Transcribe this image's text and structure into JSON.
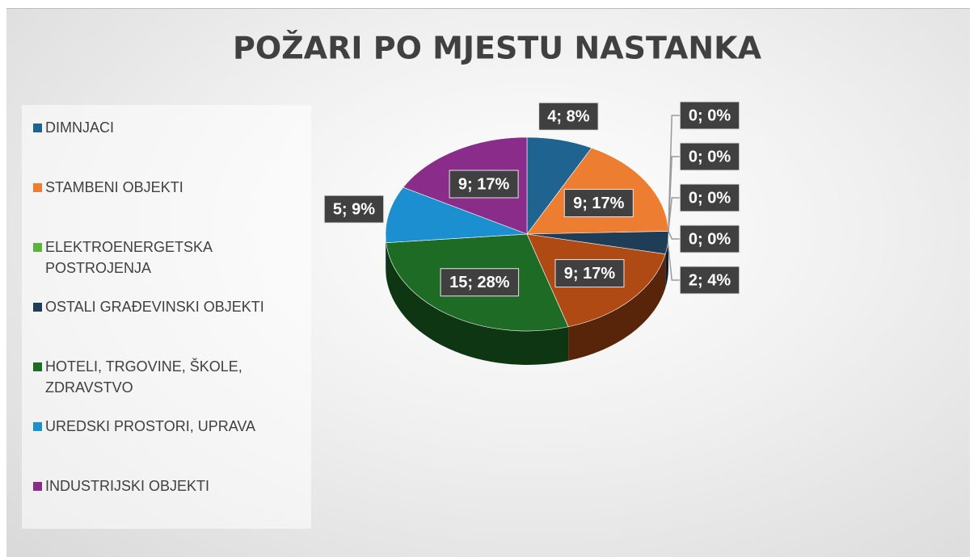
{
  "chart_data": {
    "type": "pie",
    "title": "POŽARI PO MJESTU NASTANKA",
    "categories": [
      "DIMNJACI",
      "STAMBENI OBJEKTI",
      null,
      null,
      null,
      "ELEKTROENERGETSKA POSTROJENJA",
      "OSTALI GRAĐEVINSKI OBJEKTI",
      null,
      "HOTELI, TRGOVINE, ŠKOLE, ZDRAVSTVO",
      "UREDSKI PROSTORI, UPRAVA",
      "INDUSTRIJSKI OBJEKTI"
    ],
    "values": [
      4,
      9,
      0,
      0,
      0,
      0,
      2,
      9,
      15,
      5,
      9
    ],
    "value_labels": [
      "4; 8%",
      "9; 17%",
      "0; 0%",
      "0; 0%",
      "0; 0%",
      "0; 0%",
      "2; 4%",
      "9; 17%",
      "15; 28%",
      "5; 9%",
      "9; 17%"
    ],
    "colors": [
      "#1f6391",
      "#ed7d31",
      null,
      null,
      null,
      "#5bb33b",
      "#1f3d56",
      "#b04a14",
      "#1e6b25",
      "#1b8fd0",
      "#8a2d8a"
    ]
  }
}
